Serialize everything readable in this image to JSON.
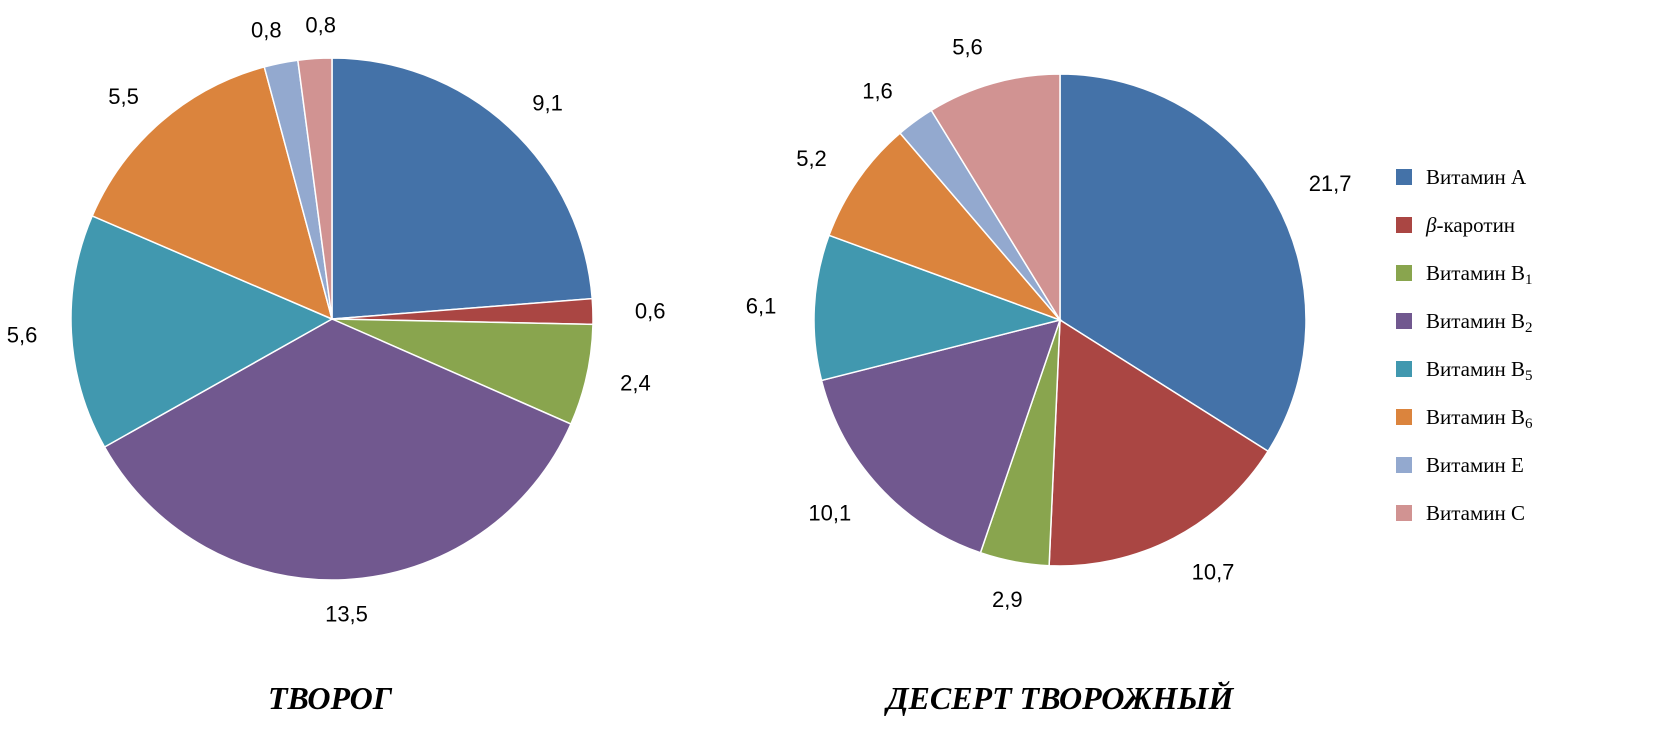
{
  "chart_data": [
    {
      "type": "pie",
      "title": "ТВОРОГ",
      "labels": [
        "Витамин А",
        "β-каротин",
        "Витамин В1",
        "Витамин В2",
        "Витамин В5",
        "Витамин В6",
        "Витамин Е",
        "Витамин С"
      ],
      "values": [
        9.1,
        0.6,
        2.4,
        13.5,
        5.6,
        5.5,
        0.8,
        0.8
      ],
      "value_labels": [
        "9,1",
        "0,6",
        "2,4",
        "13,5",
        "5,6",
        "5,5",
        "0,8",
        "0,8"
      ],
      "start": "12 o'clock",
      "direction": "clockwise"
    },
    {
      "type": "pie",
      "title": "ДЕСЕРТ ТВОРОЖНЫЙ",
      "labels": [
        "Витамин А",
        "β-каротин",
        "Витамин В1",
        "Витамин В2",
        "Витамин В5",
        "Витамин В6",
        "Витамин Е",
        "Витамин С"
      ],
      "values": [
        21.7,
        10.7,
        2.9,
        10.1,
        6.1,
        5.2,
        1.6,
        5.6
      ],
      "value_labels": [
        "21,7",
        "10,7",
        "2,9",
        "10,1",
        "6,1",
        "5,2",
        "1,6",
        "5,6"
      ],
      "start": "12 o'clock",
      "direction": "clockwise"
    }
  ],
  "legend": {
    "placement": "right",
    "items": [
      {
        "name": "vitamin-a",
        "text": "Витамин А",
        "sub": "",
        "color": "#4472A8"
      },
      {
        "name": "beta-carotene",
        "text": "-каротин",
        "prefix": "β",
        "sub": "",
        "color": "#AA4643"
      },
      {
        "name": "vitamin-b1",
        "text": "Витамин В",
        "sub": "1",
        "color": "#89A54E"
      },
      {
        "name": "vitamin-b2",
        "text": "Витамин В",
        "sub": "2",
        "color": "#71588F"
      },
      {
        "name": "vitamin-b5",
        "text": "Витамин В",
        "sub": "5",
        "color": "#4198AF"
      },
      {
        "name": "vitamin-b6",
        "text": "Витамин В",
        "sub": "6",
        "color": "#DB843D"
      },
      {
        "name": "vitamin-e",
        "text": "Витамин Е",
        "sub": "",
        "color": "#93A9CF"
      },
      {
        "name": "vitamin-c",
        "text": "Витамин С",
        "sub": "",
        "color": "#D19392"
      }
    ]
  }
}
